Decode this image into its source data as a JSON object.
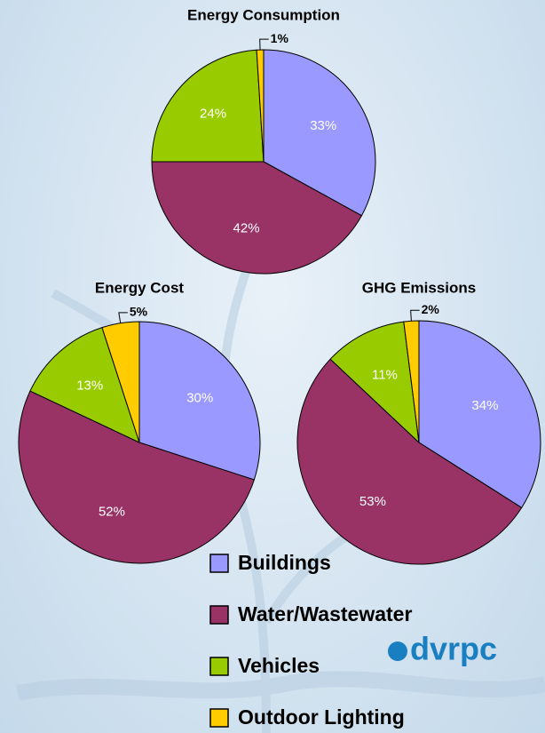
{
  "chart_data": [
    {
      "type": "pie",
      "title": "Energy Consumption",
      "categories": [
        "Buildings",
        "Water/Wastewater",
        "Vehicles",
        "Outdoor Lighting"
      ],
      "values": [
        33,
        42,
        24,
        1
      ],
      "value_labels": [
        "33%",
        "42%",
        "24%",
        "1%"
      ],
      "colors": [
        "#9999ff",
        "#993366",
        "#99cc00",
        "#ffcc00"
      ]
    },
    {
      "type": "pie",
      "title": "Energy Cost",
      "categories": [
        "Buildings",
        "Water/Wastewater",
        "Vehicles",
        "Outdoor Lighting"
      ],
      "values": [
        30,
        52,
        13,
        5
      ],
      "value_labels": [
        "30%",
        "52%",
        "13%",
        "5%"
      ],
      "colors": [
        "#9999ff",
        "#993366",
        "#99cc00",
        "#ffcc00"
      ]
    },
    {
      "type": "pie",
      "title": "GHG Emissions",
      "categories": [
        "Buildings",
        "Water/Wastewater",
        "Vehicles",
        "Outdoor Lighting"
      ],
      "values": [
        34,
        53,
        11,
        2
      ],
      "value_labels": [
        "34%",
        "53%",
        "11%",
        "2%"
      ],
      "colors": [
        "#9999ff",
        "#993366",
        "#99cc00",
        "#ffcc00"
      ]
    }
  ],
  "logo": "dvrpc"
}
